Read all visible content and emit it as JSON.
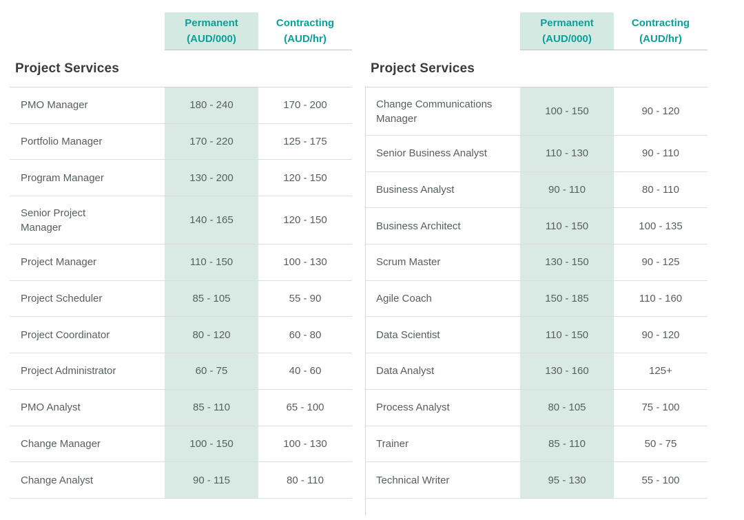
{
  "column_headers": {
    "permanent_label": "Permanent",
    "permanent_unit": "(AUD/000)",
    "contracting_label": "Contracting",
    "contracting_unit": "(AUD/hr)"
  },
  "colors": {
    "teal": "#09a09a",
    "mint_header": "#d4e9e2",
    "mint_cell": "#d9eae4"
  },
  "tables": [
    {
      "title": "Project Services",
      "rows": [
        {
          "role": "PMO Manager",
          "permanent": "180 - 240",
          "contracting": "170 - 200"
        },
        {
          "role": "Portfolio Manager",
          "permanent": "170 - 220",
          "contracting": "125 - 175"
        },
        {
          "role": "Program Manager",
          "permanent": "130 - 200",
          "contracting": "120 - 150"
        },
        {
          "role": "Senior Project\nManager",
          "permanent": "140 - 165",
          "contracting": "120 - 150"
        },
        {
          "role": "Project Manager",
          "permanent": "110 - 150",
          "contracting": "100 - 130"
        },
        {
          "role": "Project Scheduler",
          "permanent": "85 - 105",
          "contracting": "55 - 90"
        },
        {
          "role": "Project Coordinator",
          "permanent": "80 - 120",
          "contracting": "60 - 80"
        },
        {
          "role": "Project Administrator",
          "permanent": "60 - 75",
          "contracting": "40 - 60"
        },
        {
          "role": "PMO Analyst",
          "permanent": "85 - 110",
          "contracting": "65 - 100"
        },
        {
          "role": "Change Manager",
          "permanent": "100 - 150",
          "contracting": "100 - 130"
        },
        {
          "role": "Change Analyst",
          "permanent": "90 - 115",
          "contracting": "80 - 110"
        }
      ]
    },
    {
      "title": "Project Services",
      "rows": [
        {
          "role": "Change Communications\nManager",
          "permanent": "100 - 150",
          "contracting": "90 - 120"
        },
        {
          "role": "Senior Business Analyst",
          "permanent": "110 - 130",
          "contracting": "90 - 110"
        },
        {
          "role": "Business Analyst",
          "permanent": "90 - 110",
          "contracting": "80 - 110"
        },
        {
          "role": "Business Architect",
          "permanent": "110 - 150",
          "contracting": "100 - 135"
        },
        {
          "role": "Scrum Master",
          "permanent": "130 - 150",
          "contracting": "90 - 125"
        },
        {
          "role": "Agile Coach",
          "permanent": "150 - 185",
          "contracting": "110 - 160"
        },
        {
          "role": "Data Scientist",
          "permanent": "110 - 150",
          "contracting": "90 - 120"
        },
        {
          "role": "Data Analyst",
          "permanent": "130 - 160",
          "contracting": "125+"
        },
        {
          "role": "Process Analyst",
          "permanent": "80 - 105",
          "contracting": "75 - 100"
        },
        {
          "role": "Trainer",
          "permanent": "85 - 110",
          "contracting": "50 - 75"
        },
        {
          "role": "Technical Writer",
          "permanent": "95 - 130",
          "contracting": "55 - 100"
        }
      ]
    }
  ]
}
